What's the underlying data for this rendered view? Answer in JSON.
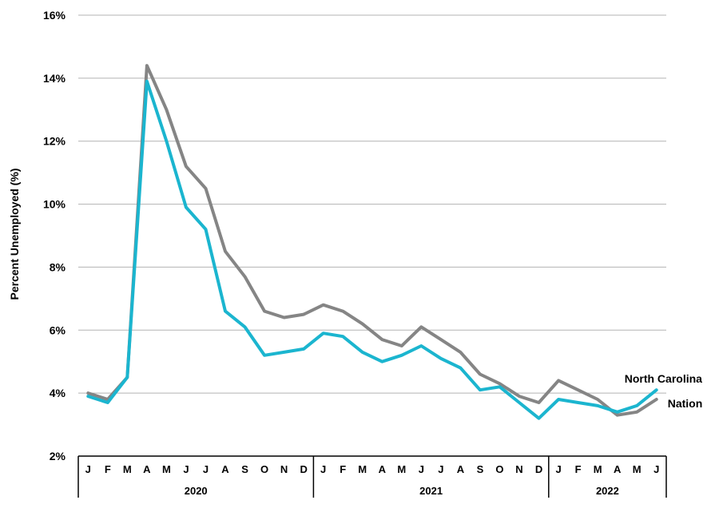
{
  "chart_data": {
    "type": "line",
    "title": "",
    "xlabel": "",
    "ylabel": "Percent Unemployed (%)",
    "ylim": [
      2,
      16
    ],
    "y_ticks": [
      "2%",
      "4%",
      "6%",
      "8%",
      "10%",
      "12%",
      "14%",
      "16%"
    ],
    "grid": "horizontal",
    "categories": [
      "J",
      "F",
      "M",
      "A",
      "M",
      "J",
      "J",
      "A",
      "S",
      "O",
      "N",
      "D",
      "J",
      "F",
      "M",
      "A",
      "M",
      "J",
      "J",
      "A",
      "S",
      "O",
      "N",
      "D",
      "J",
      "F",
      "M",
      "A",
      "M",
      "J"
    ],
    "years": [
      {
        "label": "2020",
        "months": 12
      },
      {
        "label": "2021",
        "months": 12
      },
      {
        "label": "2022",
        "months": 6
      }
    ],
    "series": [
      {
        "name": "North Carolina",
        "color": "#1bb5cf",
        "values": [
          3.9,
          3.7,
          4.5,
          13.9,
          12.0,
          9.9,
          9.2,
          6.6,
          6.1,
          5.2,
          5.3,
          5.4,
          5.9,
          5.8,
          5.3,
          5.0,
          5.2,
          5.5,
          5.1,
          4.8,
          4.1,
          4.2,
          3.7,
          3.2,
          3.8,
          3.7,
          3.6,
          3.4,
          3.6,
          4.1
        ]
      },
      {
        "name": "Nation",
        "color": "#858585",
        "values": [
          4.0,
          3.8,
          4.5,
          14.4,
          13.0,
          11.2,
          10.5,
          8.5,
          7.7,
          6.6,
          6.4,
          6.5,
          6.8,
          6.6,
          6.2,
          5.7,
          5.5,
          6.1,
          5.7,
          5.3,
          4.6,
          4.3,
          3.9,
          3.7,
          4.4,
          4.1,
          3.8,
          3.3,
          3.4,
          3.8
        ]
      }
    ]
  }
}
